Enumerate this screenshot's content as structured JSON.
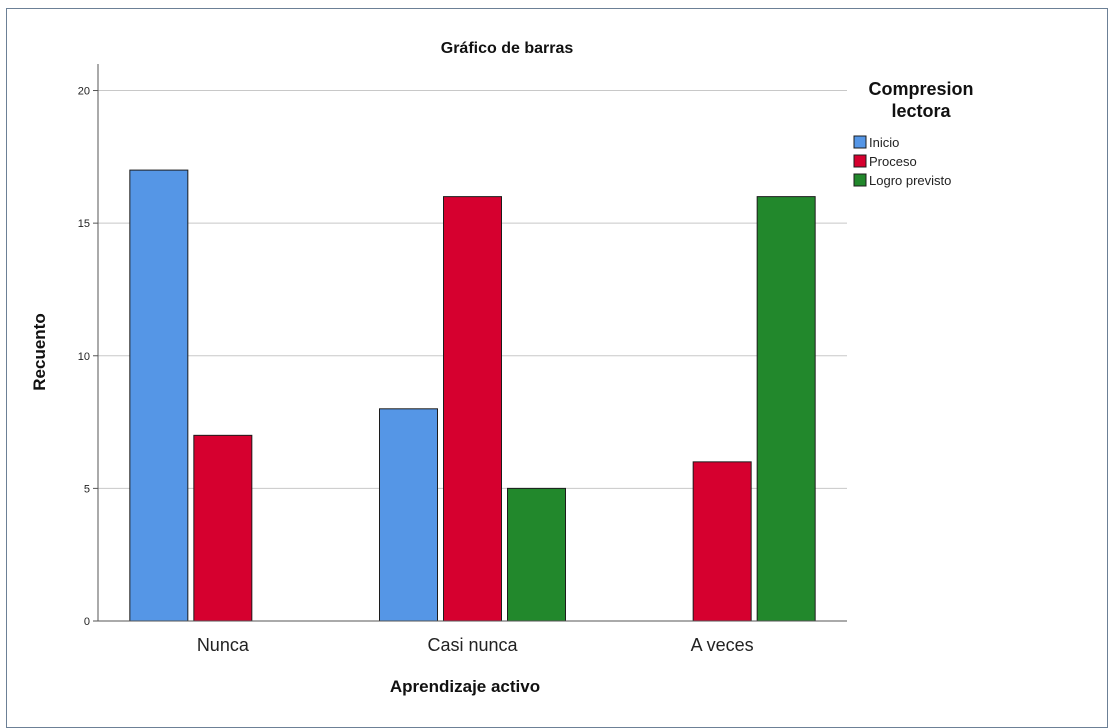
{
  "chart_data": {
    "type": "bar",
    "title": "Gráfico de barras",
    "xlabel": "Aprendizaje activo",
    "ylabel": "Recuento",
    "categories": [
      "Nunca",
      "Casi nunca",
      "A veces"
    ],
    "series": [
      {
        "name": "Inicio",
        "values": [
          17,
          8,
          null
        ],
        "color": "#5596e6"
      },
      {
        "name": "Proceso",
        "values": [
          7,
          16,
          6
        ],
        "color": "#d6002f"
      },
      {
        "name": "Logro previsto",
        "values": [
          null,
          5,
          16
        ],
        "color": "#22882c"
      }
    ],
    "ylim": [
      0,
      21
    ],
    "yticks": [
      "0",
      "5",
      "10",
      "15",
      "20"
    ],
    "grid": true,
    "legend": {
      "title_lines": [
        "Compresion",
        "lectora"
      ],
      "placement": "right"
    }
  }
}
